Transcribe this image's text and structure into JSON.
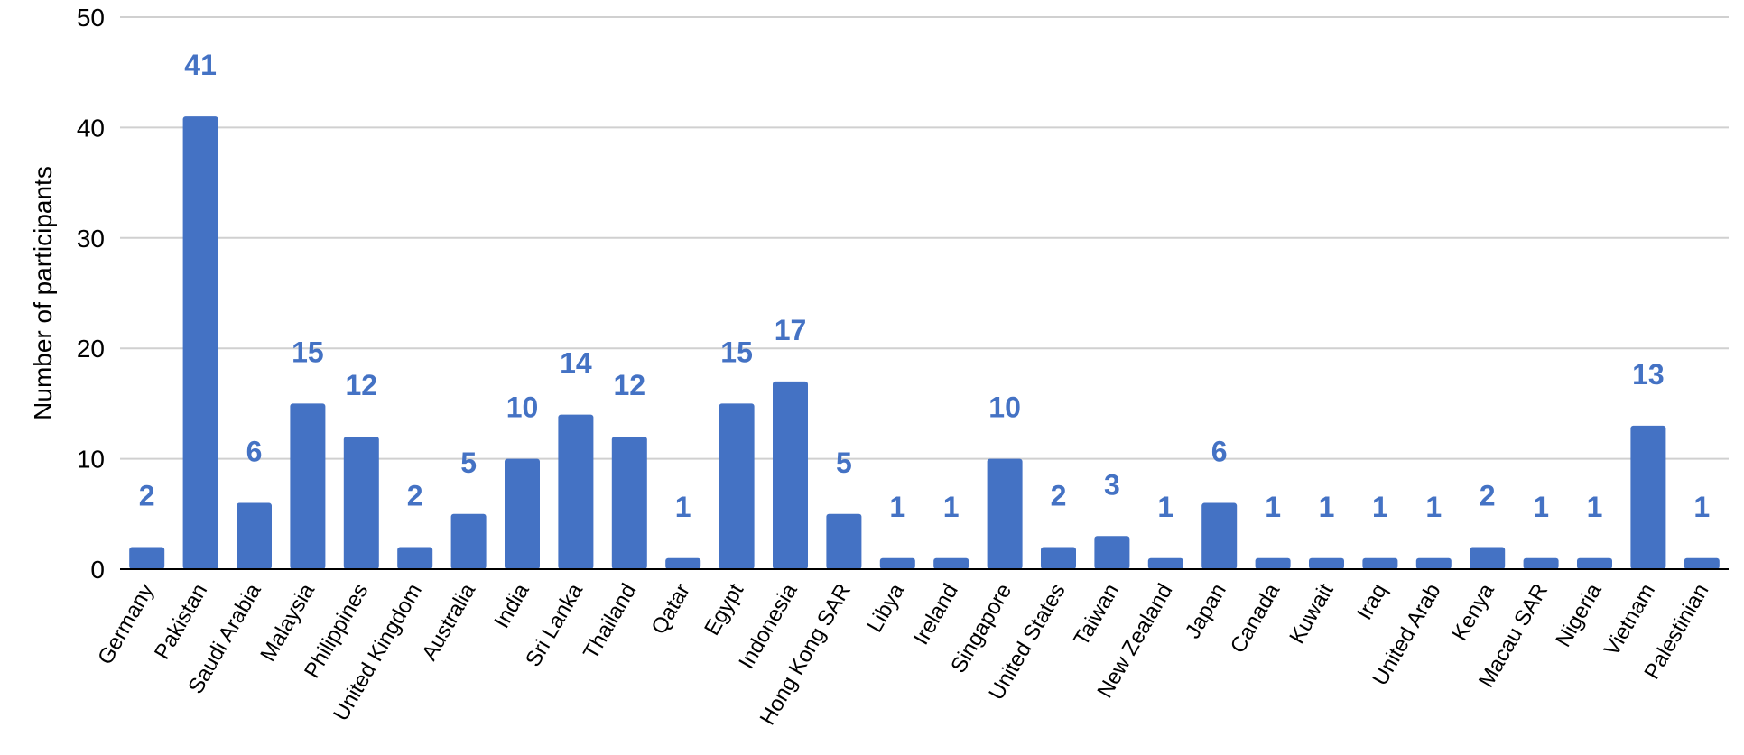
{
  "chart_data": {
    "type": "bar",
    "title": "",
    "xlabel": "",
    "ylabel": "Number of participants",
    "ylim": [
      0,
      50
    ],
    "yticks": [
      0,
      10,
      20,
      30,
      40,
      50
    ],
    "grid": true,
    "legend": "none",
    "categories": [
      "Germany",
      "Pakistan",
      "Saudi Arabia",
      "Malaysia",
      "Philippines",
      "United Kingdom",
      "Australia",
      "India",
      "Sri Lanka",
      "Thailand",
      "Qatar",
      "Egypt",
      "Indonesia",
      "Hong Kong SAR",
      "Libya",
      "Ireland",
      "Singapore",
      "United States",
      "Taiwan",
      "New Zealand",
      "Japan",
      "Canada",
      "Kuwait",
      "Iraq",
      "United Arab",
      "Kenya",
      "Macau SAR",
      "Nigeria",
      "Vietnam",
      "Palestinian"
    ],
    "values": [
      2,
      41,
      6,
      15,
      12,
      2,
      5,
      10,
      14,
      12,
      1,
      15,
      17,
      5,
      1,
      1,
      10,
      2,
      3,
      1,
      6,
      1,
      1,
      1,
      1,
      2,
      1,
      1,
      13,
      1
    ],
    "colors": {
      "bar": "#4472C4",
      "label": "#4472C4",
      "grid": "#D0D0D0",
      "axis": "#000000"
    }
  }
}
